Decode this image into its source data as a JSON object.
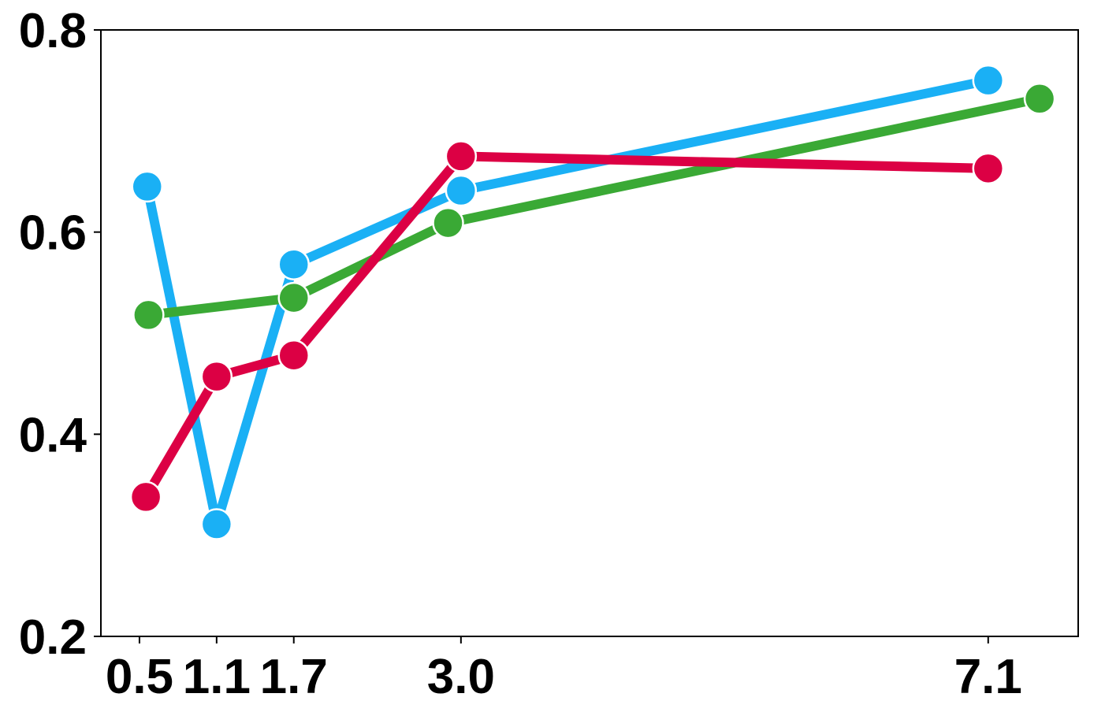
{
  "chart_data": {
    "type": "line",
    "title": "",
    "xlabel": "",
    "ylabel": "",
    "xlim": [
      0.2,
      7.8
    ],
    "ylim": [
      0.2,
      0.8
    ],
    "x_ticks": [
      0.5,
      1.1,
      1.7,
      3.0,
      7.1
    ],
    "x_tick_labels": [
      "0.5",
      "1.1",
      "1.7",
      "3.0",
      "7.1"
    ],
    "y_ticks": [
      0.2,
      0.4,
      0.6,
      0.8
    ],
    "y_tick_labels": [
      "0.2",
      "0.4",
      "0.6",
      "0.8"
    ],
    "grid": false,
    "series": [
      {
        "color": "#1ab0f5",
        "points": [
          {
            "x": 0.56,
            "y": 0.645
          },
          {
            "x": 1.1,
            "y": 0.311
          },
          {
            "x": 1.7,
            "y": 0.568
          },
          {
            "x": 3.0,
            "y": 0.641
          },
          {
            "x": 7.1,
            "y": 0.75
          }
        ]
      },
      {
        "color": "#3aa935",
        "points": [
          {
            "x": 0.57,
            "y": 0.518
          },
          {
            "x": 1.7,
            "y": 0.535
          },
          {
            "x": 2.9,
            "y": 0.609
          },
          {
            "x": 7.5,
            "y": 0.732
          }
        ]
      },
      {
        "color": "#dc0044",
        "points": [
          {
            "x": 0.55,
            "y": 0.338
          },
          {
            "x": 1.1,
            "y": 0.457
          },
          {
            "x": 1.7,
            "y": 0.478
          },
          {
            "x": 3.0,
            "y": 0.675
          },
          {
            "x": 7.1,
            "y": 0.663
          }
        ]
      }
    ]
  }
}
